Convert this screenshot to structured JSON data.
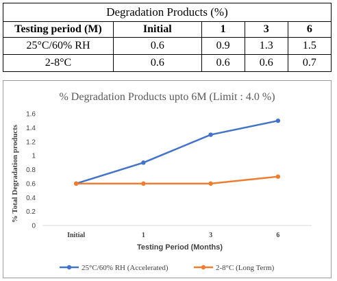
{
  "table": {
    "title": "Degradation Products (%)",
    "headers": [
      "Testing period (M)",
      "Initial",
      "1",
      "3",
      "6"
    ],
    "rows": [
      [
        "25°C/60% RH",
        "0.6",
        "0.9",
        "1.3",
        "1.5"
      ],
      [
        "2-8°C",
        "0.6",
        "0.6",
        "0.6",
        "0.7"
      ]
    ]
  },
  "chart_data": {
    "type": "line",
    "title": "% Degradation Products upto 6M (Limit : 4.0 %)",
    "xlabel": "Testing Period (Months)",
    "ylabel": "% Total Degradation products",
    "categories": [
      "Initial",
      "1",
      "3",
      "6"
    ],
    "yticks": [
      "0",
      "0.2",
      "0.4",
      "0.6",
      "0.8",
      "1",
      "1.2",
      "1.4",
      "1.6"
    ],
    "ylim": [
      0,
      1.6
    ],
    "grid": false,
    "legend_position": "bottom",
    "series": [
      {
        "name": "25°C/60% RH (Accelerated)",
        "values": [
          0.6,
          0.9,
          1.3,
          1.5
        ],
        "color": "#4472c4"
      },
      {
        "name": "2-8°C (Long Term)",
        "values": [
          0.6,
          0.6,
          0.6,
          0.7
        ],
        "color": "#ed7d31"
      }
    ]
  }
}
